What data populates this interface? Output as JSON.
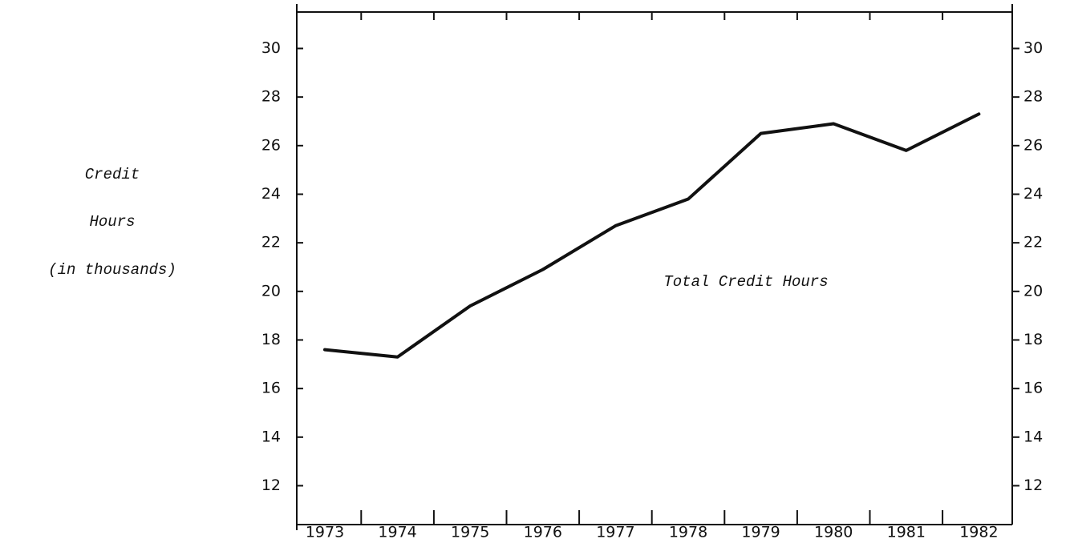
{
  "chart_data": {
    "type": "line",
    "y_label": [
      "Credit",
      "Hours",
      "(in thousands)"
    ],
    "annotation": "Total Credit Hours",
    "categories": [
      "1973",
      "1974",
      "1975",
      "1976",
      "1977",
      "1978",
      "1979",
      "1980",
      "1981",
      "1982"
    ],
    "values": [
      17.6,
      17.3,
      19.4,
      20.9,
      22.7,
      23.8,
      26.5,
      26.9,
      25.8,
      27.3
    ],
    "color": "#111111",
    "ylim": [
      10.4,
      31.5
    ],
    "yticks": [
      12,
      14,
      16,
      18,
      20,
      22,
      24,
      26,
      28,
      30
    ]
  }
}
